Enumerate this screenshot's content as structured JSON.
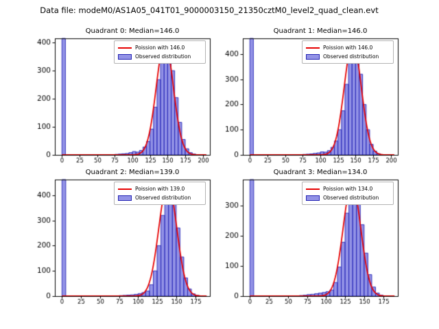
{
  "figure_title": "Data file: modeM0/AS1A05_041T01_9000003150_21350cztM0_level2_quad_clean.evt",
  "colors": {
    "bar_fill": "rgba(88,88,216,0.65)",
    "bar_edge": "#2424b4",
    "line": "#e60000",
    "axis": "#000000",
    "legend_border": "#b3b3b3",
    "background": "#ffffff"
  },
  "chart_data": [
    {
      "type": "histogram+line",
      "title": "Quadrant 0: Median=146.0",
      "legend_line": "Poission with 146.0",
      "legend_patch": "Observed distribution",
      "median": 146.0,
      "poisson_mean": 146.0,
      "curve_amplitude": 402,
      "bin_start": 0,
      "bin_width": 5,
      "counts": [
        3000,
        0,
        0,
        0,
        0,
        0,
        0,
        0,
        0,
        0,
        0,
        0,
        0,
        1,
        1,
        2,
        3,
        4,
        5,
        8,
        12,
        10,
        16,
        28,
        48,
        92,
        170,
        268,
        358,
        400,
        376,
        300,
        204,
        116,
        55,
        22,
        8,
        3,
        1,
        0,
        0
      ],
      "xlim": [
        -10,
        210
      ],
      "ylim": [
        0,
        415
      ],
      "xticks": [
        0,
        25,
        50,
        75,
        100,
        125,
        150,
        175,
        200
      ],
      "yticks": [
        0,
        100,
        200,
        300,
        400
      ]
    },
    {
      "type": "histogram+line",
      "title": "Quadrant 1: Median=146.0",
      "legend_line": "Poission with 146.0",
      "legend_patch": "Observed distribution",
      "median": 146.0,
      "poisson_mean": 146.0,
      "curve_amplitude": 446,
      "bin_start": 0,
      "bin_width": 5,
      "counts": [
        3000,
        0,
        0,
        0,
        0,
        0,
        0,
        0,
        0,
        0,
        0,
        0,
        0,
        1,
        1,
        2,
        3,
        4,
        6,
        8,
        12,
        11,
        17,
        30,
        55,
        100,
        175,
        280,
        385,
        445,
        415,
        320,
        200,
        100,
        42,
        15,
        5,
        1,
        0,
        0,
        0
      ],
      "xlim": [
        -10,
        210
      ],
      "ylim": [
        0,
        462
      ],
      "xticks": [
        0,
        25,
        50,
        75,
        100,
        125,
        150,
        175,
        200
      ],
      "yticks": [
        0,
        100,
        200,
        300,
        400
      ]
    },
    {
      "type": "histogram+line",
      "title": "Quadrant 2: Median=139.0",
      "legend_line": "Poission with 139.0",
      "legend_patch": "Observed distribution",
      "median": 139.0,
      "poisson_mean": 139.0,
      "curve_amplitude": 446,
      "bin_start": 0,
      "bin_width": 5,
      "counts": [
        3000,
        0,
        0,
        0,
        0,
        0,
        0,
        0,
        0,
        0,
        0,
        0,
        0,
        1,
        1,
        2,
        3,
        4,
        5,
        7,
        10,
        14,
        20,
        45,
        100,
        200,
        320,
        420,
        445,
        385,
        270,
        155,
        72,
        28,
        9,
        3,
        1,
        0
      ],
      "xlim": [
        -9.3,
        194.3
      ],
      "ylim": [
        0,
        462
      ],
      "xticks": [
        0,
        25,
        50,
        75,
        100,
        125,
        150,
        175
      ],
      "yticks": [
        0,
        100,
        200,
        300,
        400
      ]
    },
    {
      "type": "histogram+line",
      "title": "Quadrant 3: Median=134.0",
      "legend_line": "Poission with 134.0",
      "legend_patch": "Observed distribution",
      "median": 134.0,
      "poisson_mean": 134.0,
      "curve_amplitude": 371,
      "bin_start": 0,
      "bin_width": 5,
      "counts": [
        3000,
        0,
        0,
        0,
        0,
        0,
        0,
        0,
        0,
        0,
        0,
        0,
        1,
        2,
        3,
        5,
        6,
        8,
        10,
        12,
        15,
        20,
        45,
        96,
        178,
        274,
        348,
        370,
        323,
        236,
        142,
        71,
        30,
        10,
        3,
        1,
        0,
        0
      ],
      "xlim": [
        -9.3,
        194.3
      ],
      "ylim": [
        0,
        385
      ],
      "xticks": [
        0,
        25,
        50,
        75,
        100,
        125,
        150,
        175
      ],
      "yticks": [
        0,
        100,
        200,
        300
      ]
    }
  ]
}
